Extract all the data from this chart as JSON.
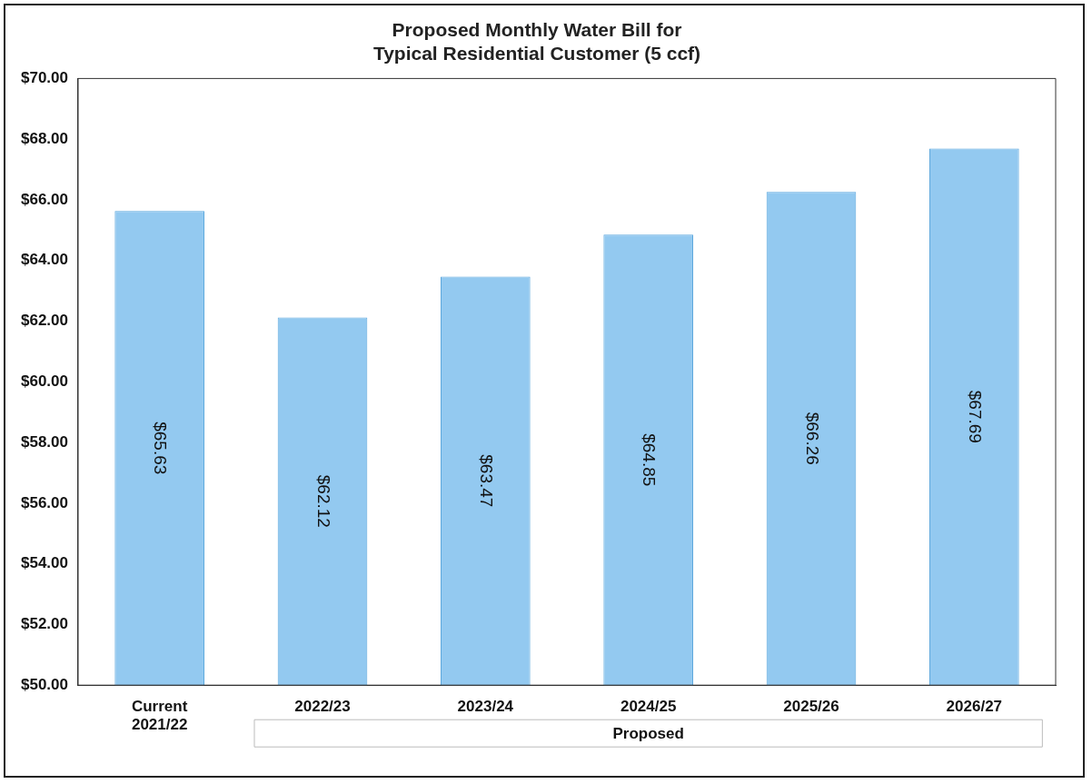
{
  "chart_data": {
    "type": "bar",
    "title": "Proposed Monthly Water Bill for\nTypical Residential Customer (5 ccf)",
    "categories": [
      "Current\n2021/22",
      "2022/23",
      "2023/24",
      "2024/25",
      "2025/26",
      "2026/27"
    ],
    "values": [
      65.63,
      62.12,
      63.47,
      64.85,
      66.26,
      67.69
    ],
    "value_labels": [
      "$65.63",
      "$62.12",
      "$63.47",
      "$64.85",
      "$66.26",
      "$67.69"
    ],
    "color": "#93c9f0",
    "ylim": [
      50,
      70
    ],
    "yticks": [
      {
        "value": 50,
        "label": "$50.00"
      },
      {
        "value": 52,
        "label": "$52.00"
      },
      {
        "value": 54,
        "label": "$54.00"
      },
      {
        "value": 56,
        "label": "$56.00"
      },
      {
        "value": 58,
        "label": "$58.00"
      },
      {
        "value": 60,
        "label": "$60.00"
      },
      {
        "value": 62,
        "label": "$62.00"
      },
      {
        "value": 64,
        "label": "$64.00"
      },
      {
        "value": 66,
        "label": "$66.00"
      },
      {
        "value": 68,
        "label": "$68.00"
      },
      {
        "value": 70,
        "label": "$70.00"
      }
    ],
    "annotations": [
      "Proposed"
    ],
    "grid": false,
    "legend": false
  }
}
